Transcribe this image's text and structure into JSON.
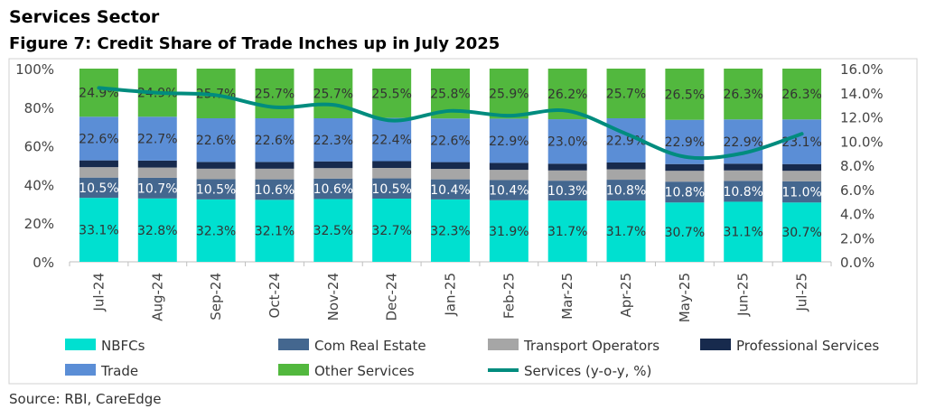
{
  "header": {
    "section": "Services Sector",
    "figure_title": "Figure 7: Credit Share of Trade Inches up in July 2025"
  },
  "source": "Source: RBI, CareEdge",
  "chart_data": {
    "type": "bar",
    "stacked": true,
    "title": "Figure 7: Credit Share of Trade Inches up in July 2025",
    "categories": [
      "Jul-24",
      "Aug-24",
      "Sep-24",
      "Oct-24",
      "Nov-24",
      "Dec-24",
      "Jan-25",
      "Feb-25",
      "Mar-25",
      "Apr-25",
      "May-25",
      "Jun-25",
      "Jul-25"
    ],
    "ylim": [
      0,
      100
    ],
    "y_ticks": [
      "0%",
      "20%",
      "40%",
      "60%",
      "80%",
      "100%"
    ],
    "y2lim": [
      0,
      16
    ],
    "y2_ticks": [
      "0.0%",
      "2.0%",
      "4.0%",
      "6.0%",
      "8.0%",
      "10.0%",
      "12.0%",
      "14.0%",
      "16.0%"
    ],
    "legend_position": "bottom",
    "series": [
      {
        "name": "NBFCs",
        "color": "#00E0D0",
        "labeled": true,
        "label_color": "#333333",
        "values": [
          33.1,
          32.8,
          32.3,
          32.1,
          32.5,
          32.7,
          32.3,
          31.9,
          31.7,
          31.7,
          30.7,
          31.1,
          30.7
        ]
      },
      {
        "name": "Com Real Estate",
        "color": "#44678F",
        "labeled": true,
        "label_color": "#ffffff",
        "values": [
          10.5,
          10.7,
          10.5,
          10.6,
          10.6,
          10.5,
          10.4,
          10.4,
          10.3,
          10.8,
          10.8,
          10.8,
          11.0
        ]
      },
      {
        "name": "Transport Operators",
        "color": "#A6A6A6",
        "labeled": false,
        "values": [
          5.4,
          5.3,
          5.4,
          5.5,
          5.4,
          5.4,
          5.4,
          5.3,
          5.3,
          5.4,
          5.6,
          5.4,
          5.4
        ]
      },
      {
        "name": "Professional Services",
        "color": "#172A4D",
        "labeled": false,
        "values": [
          3.5,
          3.6,
          3.5,
          3.5,
          3.5,
          3.5,
          3.5,
          3.6,
          3.5,
          3.5,
          3.5,
          3.5,
          3.5
        ]
      },
      {
        "name": "Trade",
        "color": "#5B8ED6",
        "labeled": true,
        "label_color": "#333333",
        "values": [
          22.6,
          22.7,
          22.6,
          22.6,
          22.3,
          22.4,
          22.6,
          22.9,
          23.0,
          22.9,
          22.9,
          22.9,
          23.1
        ]
      },
      {
        "name": "Other Services",
        "color": "#52B83E",
        "labeled": true,
        "label_color": "#333333",
        "values": [
          24.9,
          24.9,
          25.7,
          25.7,
          25.7,
          25.5,
          25.8,
          25.9,
          26.2,
          25.7,
          26.5,
          26.3,
          26.3
        ]
      }
    ],
    "line": {
      "name": "Services (y-o-y, %)",
      "color": "#008C7E",
      "axis": "secondary",
      "values": [
        14.4,
        14.0,
        13.8,
        12.8,
        13.0,
        11.7,
        12.5,
        12.1,
        12.5,
        10.6,
        8.7,
        9.0,
        10.6
      ]
    }
  }
}
